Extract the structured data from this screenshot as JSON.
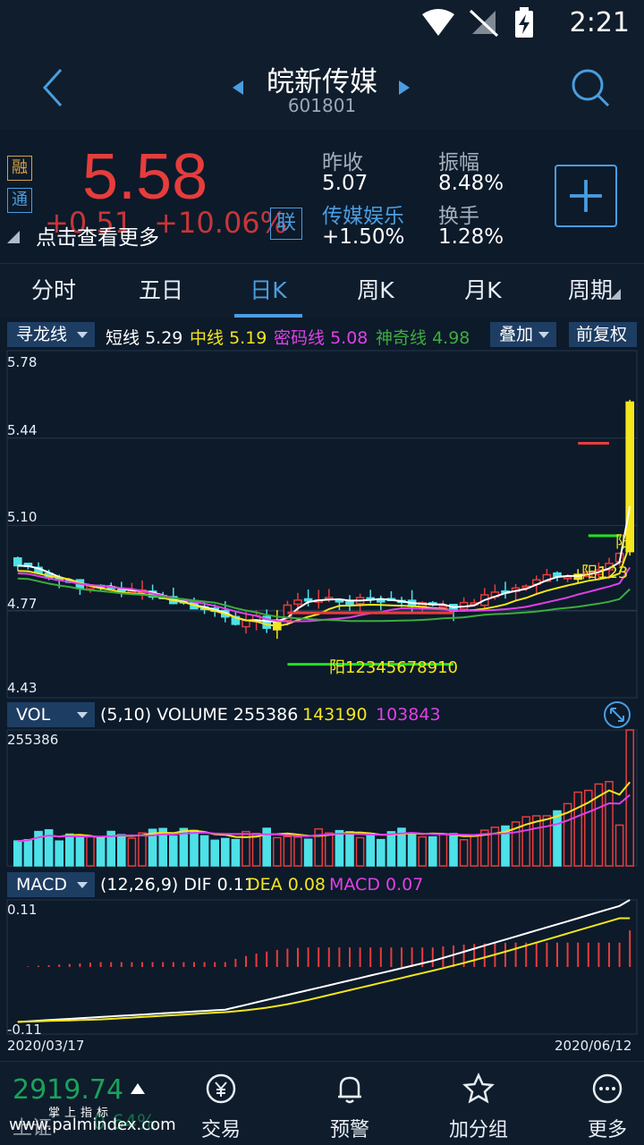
{
  "status_bar": {
    "time": "2:21",
    "icons": [
      "wifi-icon",
      "no-signal-icon",
      "battery-charging-icon"
    ]
  },
  "header": {
    "title": "皖新传媒",
    "code": "601801",
    "icons": [
      "back-icon",
      "prev-stock-icon",
      "next-stock-icon",
      "search-icon"
    ]
  },
  "quote": {
    "tag_rong": "融",
    "tag_tong": "通",
    "price": "5.58",
    "change": "+0.51",
    "change_pct": "+10.06%",
    "tip": "点击查看更多",
    "lian": "联",
    "prev_close_label": "昨收",
    "prev_close": "5.07",
    "sector_name": "传媒娱乐",
    "sector_change": "+1.50%",
    "amplitude_label": "振幅",
    "amplitude": "8.48%",
    "turnover_label": "换手",
    "turnover": "1.28%",
    "add_icon": "plus-icon",
    "up_color": "#e73c3c",
    "down_color": "#19a35b",
    "accent": "#4a9de0"
  },
  "tabs": [
    {
      "label": "分时",
      "active": false
    },
    {
      "label": "五日",
      "active": false
    },
    {
      "label": "日K",
      "active": true
    },
    {
      "label": "周K",
      "active": false
    },
    {
      "label": "月K",
      "active": false
    },
    {
      "label": "周期",
      "active": false
    }
  ],
  "main_indicator": {
    "selector": "寻龙线",
    "short_label": "短线",
    "short_value": "5.29",
    "mid_label": "中线",
    "mid_value": "5.19",
    "code_label": "密码线",
    "code_value": "5.08",
    "magic_label": "神奇线",
    "magic_value": "4.98",
    "overlay_button": "叠加",
    "adjust_button": "前复权",
    "y_ticks": [
      "5.78",
      "5.44",
      "5.10",
      "4.77",
      "4.43"
    ],
    "annotation_1": "阳12345678910",
    "annotation_2": "阳123",
    "annotation_3": "阳",
    "colors": {
      "short": "#ffffff",
      "mid": "#f3e61c",
      "code": "#e040e8",
      "magic": "#3dac3d"
    }
  },
  "volume_indicator": {
    "selector": "VOL",
    "params": "(5,10)",
    "name": "VOLUME",
    "value": "255386",
    "ma5": "143190",
    "ma10": "103843",
    "max_label": "255386",
    "expand_icon": "expand-icon"
  },
  "macd_indicator": {
    "selector": "MACD",
    "params": "(12,26,9)",
    "dif_label": "DIF",
    "dif": "0.11",
    "dea_label": "DEA",
    "dea": "0.08",
    "macd_label": "MACD",
    "macd": "0.07",
    "max_label": "0.11",
    "min_label": "-0.11",
    "start_date": "2020/03/17",
    "end_date": "2020/06/12"
  },
  "chart_data": {
    "type": "candlestick",
    "x_range": [
      "2020/03/17",
      "2020/06/12"
    ],
    "ylim": [
      4.43,
      5.78
    ],
    "y_ticks": [
      5.78,
      5.44,
      5.1,
      4.77,
      4.43
    ],
    "last_close": 5.58,
    "indicators": {
      "short": 5.29,
      "mid": 5.19,
      "code": 5.08,
      "magic": 4.98
    },
    "volume": {
      "last": 255386,
      "ma5": 143190,
      "ma10": 103843,
      "max": 255386
    },
    "macd": {
      "dif": 0.11,
      "dea": 0.08,
      "macd": 0.07,
      "range": [
        -0.11,
        0.11
      ]
    }
  },
  "bottom_nav": {
    "index_value": "2919.74",
    "index_name": "上证",
    "index_change": "0.64%",
    "watermark_1": "掌上指标",
    "watermark_2": "www.palmindex.com",
    "items": [
      {
        "label": "交易",
        "icon": "trade-icon"
      },
      {
        "label": "预警",
        "icon": "bell-icon"
      },
      {
        "label": "加分组",
        "icon": "star-icon"
      },
      {
        "label": "更多",
        "icon": "more-icon"
      }
    ]
  }
}
